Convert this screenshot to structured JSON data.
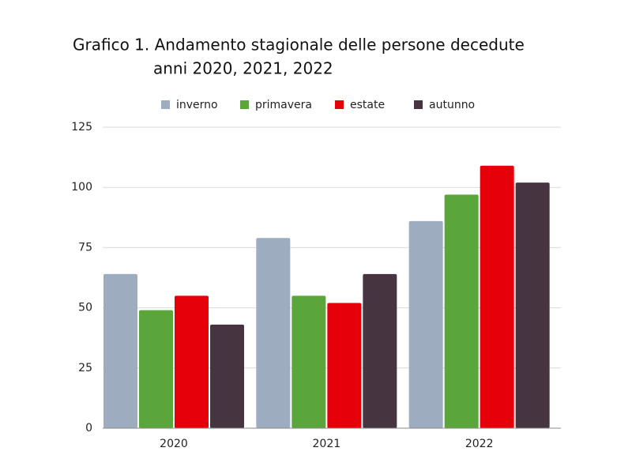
{
  "chart_data": {
    "type": "bar",
    "title": [
      "Grafico 1.  Andamento stagionale delle persone decedute",
      "anni 2020, 2021, 2022"
    ],
    "categories": [
      "2020",
      "2021",
      "2022"
    ],
    "series": [
      {
        "name": "inverno",
        "color": "#9eacbf",
        "values": [
          64,
          79,
          86
        ]
      },
      {
        "name": "primavera",
        "color": "#5aa63a",
        "values": [
          49,
          55,
          97
        ]
      },
      {
        "name": "estate",
        "color": "#e6000a",
        "values": [
          55,
          52,
          109
        ]
      },
      {
        "name": "autunno",
        "color": "#463441",
        "values": [
          43,
          64,
          102
        ]
      }
    ],
    "ylim": [
      0,
      125
    ],
    "yticks": [
      0,
      25,
      50,
      75,
      100,
      125
    ],
    "grid": true,
    "legend": "top"
  }
}
